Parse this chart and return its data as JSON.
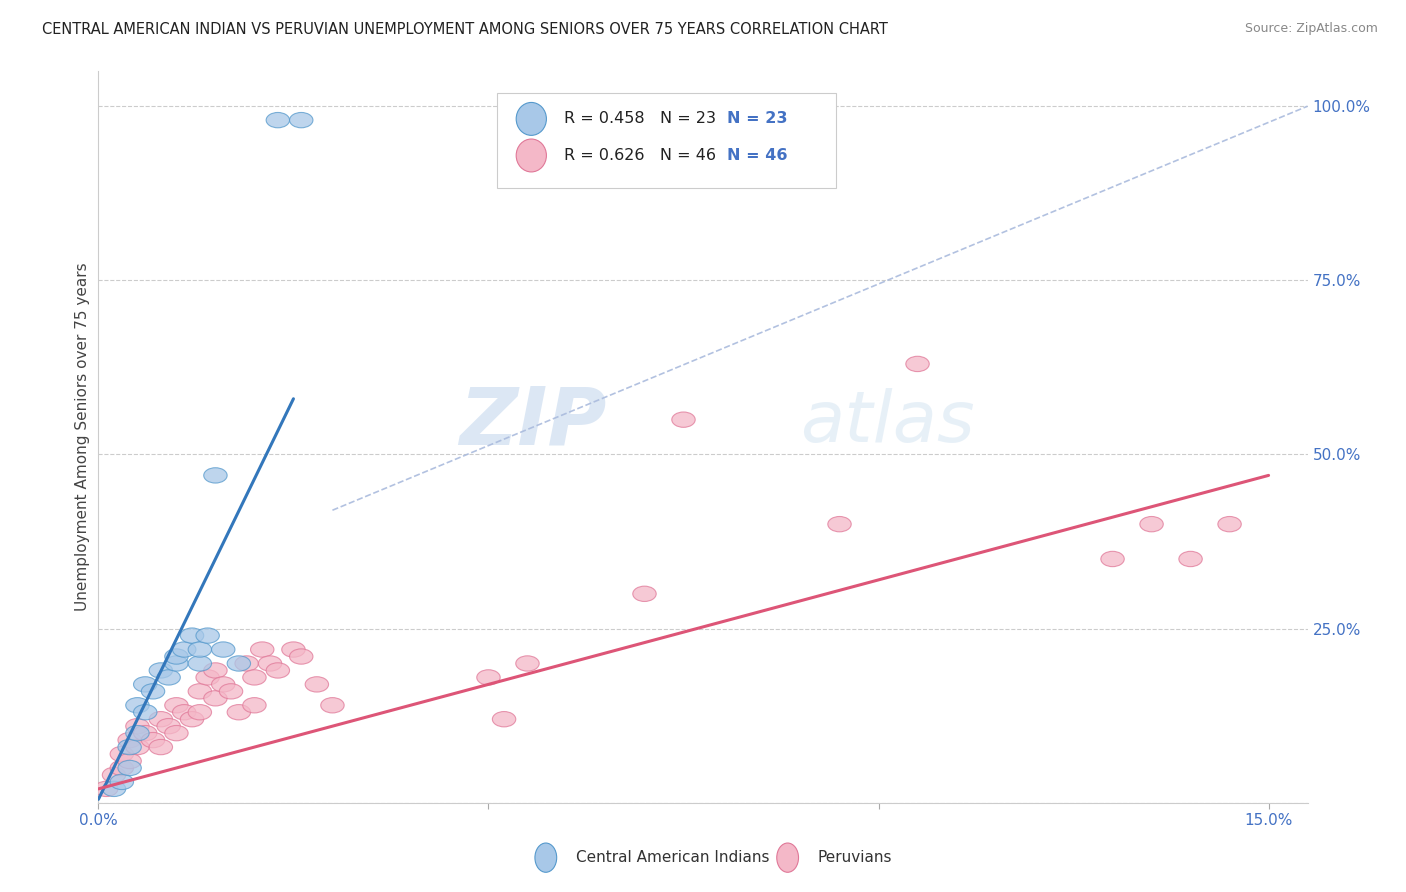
{
  "title": "CENTRAL AMERICAN INDIAN VS PERUVIAN UNEMPLOYMENT AMONG SENIORS OVER 75 YEARS CORRELATION CHART",
  "source": "Source: ZipAtlas.com",
  "ylabel": "Unemployment Among Seniors over 75 years",
  "legend_blue_r": "R = 0.458",
  "legend_blue_n": "N = 23",
  "legend_pink_r": "R = 0.626",
  "legend_pink_n": "N = 46",
  "legend_label_blue": "Central American Indians",
  "legend_label_pink": "Peruvians",
  "blue_fill": "#a8c8e8",
  "blue_edge": "#5599cc",
  "pink_fill": "#f4b8c8",
  "pink_edge": "#e07898",
  "blue_line_color": "#3377bb",
  "pink_line_color": "#dd5577",
  "diagonal_color": "#aabbdd",
  "text_color_blue": "#4472c4",
  "watermark_zip": "ZIP",
  "watermark_atlas": "atlas",
  "blue_scatter_x": [
    0.002,
    0.003,
    0.004,
    0.004,
    0.005,
    0.005,
    0.006,
    0.006,
    0.007,
    0.008,
    0.009,
    0.01,
    0.01,
    0.011,
    0.012,
    0.013,
    0.013,
    0.014,
    0.015,
    0.016,
    0.018,
    0.023,
    0.026
  ],
  "blue_scatter_y": [
    0.02,
    0.03,
    0.05,
    0.08,
    0.1,
    0.14,
    0.13,
    0.17,
    0.16,
    0.19,
    0.18,
    0.2,
    0.21,
    0.22,
    0.24,
    0.2,
    0.22,
    0.24,
    0.47,
    0.22,
    0.2,
    0.98,
    0.98
  ],
  "pink_scatter_x": [
    0.001,
    0.002,
    0.003,
    0.003,
    0.004,
    0.004,
    0.005,
    0.005,
    0.006,
    0.007,
    0.008,
    0.008,
    0.009,
    0.01,
    0.01,
    0.011,
    0.012,
    0.013,
    0.013,
    0.014,
    0.015,
    0.015,
    0.016,
    0.017,
    0.018,
    0.019,
    0.02,
    0.02,
    0.021,
    0.022,
    0.023,
    0.025,
    0.026,
    0.028,
    0.03,
    0.05,
    0.052,
    0.055,
    0.07,
    0.075,
    0.095,
    0.105,
    0.13,
    0.135,
    0.14,
    0.145
  ],
  "pink_scatter_y": [
    0.02,
    0.04,
    0.05,
    0.07,
    0.06,
    0.09,
    0.08,
    0.11,
    0.1,
    0.09,
    0.08,
    0.12,
    0.11,
    0.14,
    0.1,
    0.13,
    0.12,
    0.16,
    0.13,
    0.18,
    0.15,
    0.19,
    0.17,
    0.16,
    0.13,
    0.2,
    0.18,
    0.14,
    0.22,
    0.2,
    0.19,
    0.22,
    0.21,
    0.17,
    0.14,
    0.18,
    0.12,
    0.2,
    0.3,
    0.55,
    0.4,
    0.63,
    0.35,
    0.4,
    0.35,
    0.4
  ],
  "blue_line_x": [
    0.0,
    0.025
  ],
  "blue_line_y": [
    0.005,
    0.58
  ],
  "pink_line_x": [
    0.0,
    0.15
  ],
  "pink_line_y": [
    0.02,
    0.47
  ],
  "diag_line_x": [
    0.03,
    0.155
  ],
  "diag_line_y": [
    0.42,
    1.0
  ],
  "xlim": [
    0,
    0.155
  ],
  "ylim": [
    0,
    1.05
  ],
  "xtick_major": [
    0.0,
    0.05,
    0.1,
    0.15
  ],
  "ytick_vals": [
    0.0,
    0.25,
    0.5,
    0.75,
    1.0
  ],
  "ytick_labels": [
    "",
    "25.0%",
    "50.0%",
    "75.0%",
    "100.0%"
  ]
}
